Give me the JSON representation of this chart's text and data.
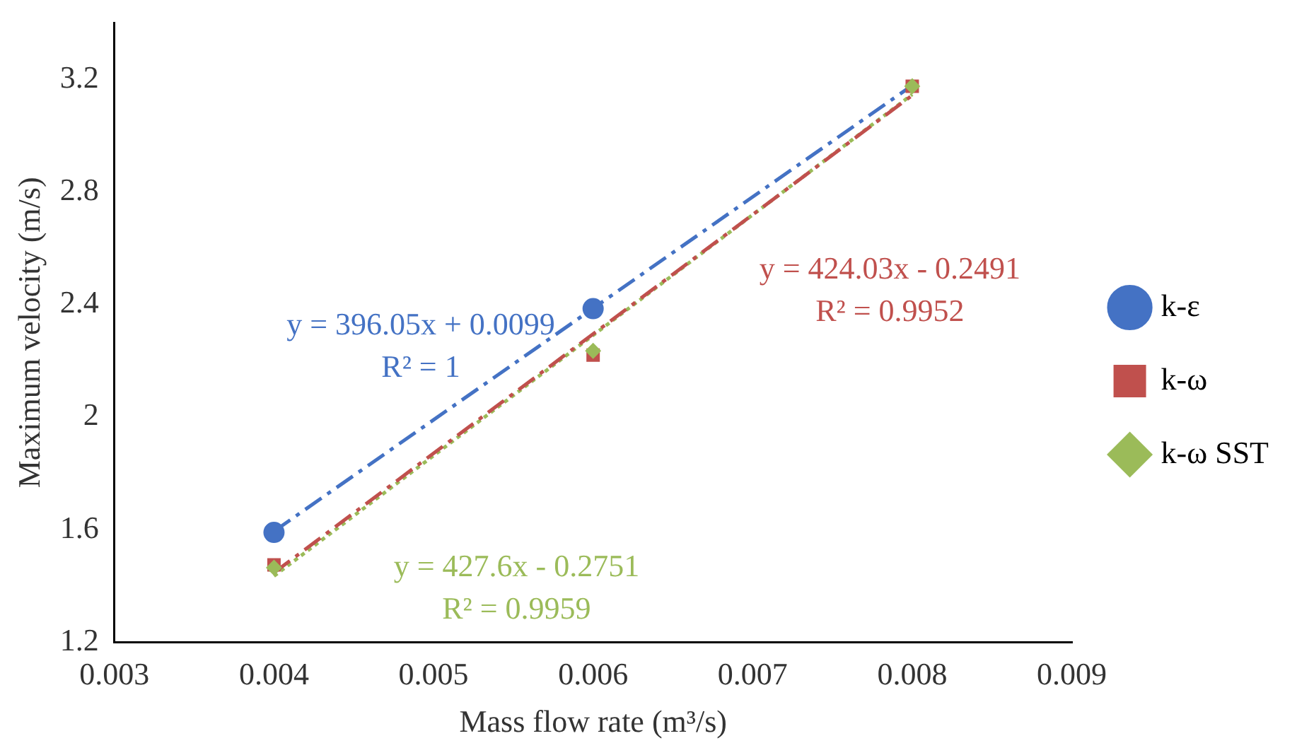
{
  "chart_data": {
    "type": "scatter",
    "xlabel": "Mass flow rate (m³/s)",
    "ylabel": "Maximum velocity (m/s)",
    "xlim": [
      0.003,
      0.009
    ],
    "xticks": [
      0.003,
      0.004,
      0.005,
      0.006,
      0.007,
      0.008,
      0.009
    ],
    "ylim": [
      1.2,
      3.4
    ],
    "yticks": [
      1.2,
      1.6,
      2,
      2.4,
      2.8,
      3.2
    ],
    "grid": false,
    "legend": "right",
    "series": [
      {
        "name": "k-ε",
        "color": "#4472c4",
        "marker": "circle",
        "x": [
          0.004,
          0.006
        ],
        "values": [
          1.59,
          2.385
        ]
      },
      {
        "name": "k-ω",
        "color": "#c0504d",
        "marker": "square",
        "x": [
          0.004,
          0.006,
          0.008
        ],
        "values": [
          1.475,
          2.22,
          3.175
        ]
      },
      {
        "name": "k-ω SST",
        "color": "#9bbb59",
        "marker": "diamond",
        "x": [
          0.004,
          0.006,
          0.008
        ],
        "values": [
          1.465,
          2.235,
          3.175
        ]
      },
      {
        "type": "line",
        "color": "#4472c4",
        "line_style": "dashed",
        "marker": "none",
        "x": [
          0.004,
          0.008
        ],
        "values": [
          1.594,
          3.178
        ]
      },
      {
        "type": "line",
        "color": "#c0504d",
        "line_style": "dashed",
        "marker": "none",
        "x": [
          0.004,
          0.008
        ],
        "values": [
          1.447,
          3.143
        ]
      },
      {
        "type": "line",
        "color": "#9bbb59",
        "line_style": "dotted",
        "marker": "none",
        "x": [
          0.004,
          0.008
        ],
        "values": [
          1.435,
          3.146
        ]
      }
    ],
    "annotations": [
      "y = 396.05x + 0.0099\nR² = 1",
      "y = 424.03x - 0.2491\nR² = 0.9952",
      "y = 427.6x - 0.2751\nR² = 0.9959"
    ]
  }
}
